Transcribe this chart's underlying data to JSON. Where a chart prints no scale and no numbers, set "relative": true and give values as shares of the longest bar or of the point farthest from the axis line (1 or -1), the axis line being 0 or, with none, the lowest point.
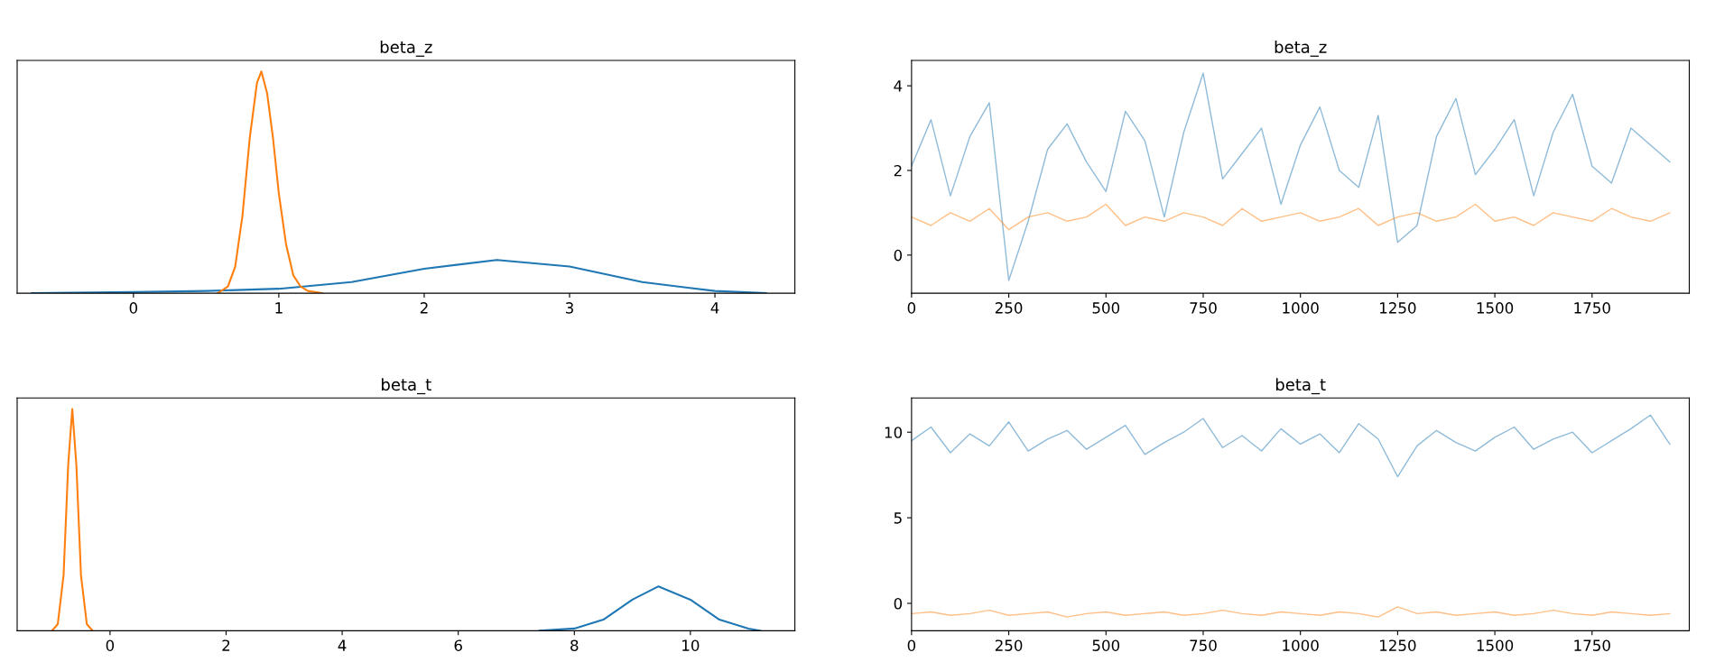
{
  "chart_data": [
    {
      "type": "line",
      "title": "beta_z",
      "relative": true,
      "xlim": [
        -0.8,
        4.55
      ],
      "xticks": [
        0,
        1,
        2,
        3,
        4
      ],
      "tick_labels": "x",
      "grid": false,
      "series": [
        {
          "color": "#1f77b4",
          "x": [
            -0.7,
            0,
            0.5,
            1,
            1.5,
            2,
            2.5,
            3,
            3.5,
            4,
            4.35
          ],
          "values": [
            0,
            0.005,
            0.01,
            0.02,
            0.05,
            0.11,
            0.15,
            0.12,
            0.05,
            0.01,
            0
          ]
        },
        {
          "color": "#ff7f0e",
          "x": [
            0.58,
            0.65,
            0.7,
            0.75,
            0.8,
            0.85,
            0.88,
            0.92,
            0.96,
            1.0,
            1.05,
            1.1,
            1.15,
            1.2,
            1.3
          ],
          "values": [
            0,
            0.03,
            0.12,
            0.35,
            0.7,
            0.95,
            1.0,
            0.9,
            0.7,
            0.45,
            0.22,
            0.08,
            0.03,
            0.01,
            0
          ]
        }
      ]
    },
    {
      "type": "line",
      "title": "beta_z",
      "xlim": [
        0,
        2000
      ],
      "xticks": [
        0,
        250,
        500,
        750,
        1000,
        1250,
        1500,
        1750
      ],
      "ylim": [
        -0.9,
        4.6
      ],
      "yticks": [
        0,
        2,
        4
      ],
      "grid": false,
      "x": [
        0,
        50,
        100,
        150,
        200,
        250,
        300,
        350,
        400,
        450,
        500,
        550,
        600,
        650,
        700,
        750,
        800,
        850,
        900,
        950,
        1000,
        1050,
        1100,
        1150,
        1200,
        1250,
        1300,
        1350,
        1400,
        1450,
        1500,
        1550,
        1600,
        1650,
        1700,
        1750,
        1800,
        1850,
        1900,
        1950
      ],
      "series": [
        {
          "color": "#1f77b4",
          "values": [
            2.1,
            3.2,
            1.4,
            2.8,
            3.6,
            -0.6,
            0.8,
            2.5,
            3.1,
            2.2,
            1.5,
            3.4,
            2.7,
            0.9,
            2.9,
            4.3,
            1.8,
            2.4,
            3.0,
            1.2,
            2.6,
            3.5,
            2.0,
            1.6,
            3.3,
            0.3,
            0.7,
            2.8,
            3.7,
            1.9,
            2.5,
            3.2,
            1.4,
            2.9,
            3.8,
            2.1,
            1.7,
            3.0,
            2.6,
            2.2
          ]
        },
        {
          "color": "#ff7f0e",
          "values": [
            0.9,
            0.7,
            1.0,
            0.8,
            1.1,
            0.6,
            0.9,
            1.0,
            0.8,
            0.9,
            1.2,
            0.7,
            0.9,
            0.8,
            1.0,
            0.9,
            0.7,
            1.1,
            0.8,
            0.9,
            1.0,
            0.8,
            0.9,
            1.1,
            0.7,
            0.9,
            1.0,
            0.8,
            0.9,
            1.2,
            0.8,
            0.9,
            0.7,
            1.0,
            0.9,
            0.8,
            1.1,
            0.9,
            0.8,
            1.0
          ]
        }
      ]
    },
    {
      "type": "line",
      "title": "beta_t",
      "relative": true,
      "xlim": [
        -1.6,
        11.8
      ],
      "xticks": [
        0,
        2,
        4,
        6,
        8,
        10
      ],
      "tick_labels": "x",
      "grid": false,
      "series": [
        {
          "color": "#1f77b4",
          "x": [
            7.4,
            8,
            8.5,
            9,
            9.45,
            10,
            10.5,
            11,
            11.2
          ],
          "values": [
            0,
            0.01,
            0.05,
            0.14,
            0.2,
            0.14,
            0.05,
            0.01,
            0
          ]
        },
        {
          "color": "#ff7f0e",
          "x": [
            -1.0,
            -0.9,
            -0.8,
            -0.72,
            -0.65,
            -0.58,
            -0.5,
            -0.4,
            -0.3
          ],
          "values": [
            0,
            0.03,
            0.25,
            0.75,
            1.0,
            0.75,
            0.25,
            0.03,
            0
          ]
        }
      ]
    },
    {
      "type": "line",
      "title": "beta_t",
      "xlim": [
        0,
        2000
      ],
      "xticks": [
        0,
        250,
        500,
        750,
        1000,
        1250,
        1500,
        1750
      ],
      "ylim": [
        -1.6,
        12
      ],
      "yticks": [
        0,
        5,
        10
      ],
      "grid": false,
      "x": [
        0,
        50,
        100,
        150,
        200,
        250,
        300,
        350,
        400,
        450,
        500,
        550,
        600,
        650,
        700,
        750,
        800,
        850,
        900,
        950,
        1000,
        1050,
        1100,
        1150,
        1200,
        1250,
        1300,
        1350,
        1400,
        1450,
        1500,
        1550,
        1600,
        1650,
        1700,
        1750,
        1800,
        1850,
        1900,
        1950
      ],
      "series": [
        {
          "color": "#1f77b4",
          "values": [
            9.5,
            10.3,
            8.8,
            9.9,
            9.2,
            10.6,
            8.9,
            9.6,
            10.1,
            9.0,
            9.7,
            10.4,
            8.7,
            9.4,
            10.0,
            10.8,
            9.1,
            9.8,
            8.9,
            10.2,
            9.3,
            9.9,
            8.8,
            10.5,
            9.6,
            7.4,
            9.2,
            10.1,
            9.4,
            8.9,
            9.7,
            10.3,
            9.0,
            9.6,
            10.0,
            8.8,
            9.5,
            10.2,
            11.0,
            9.3
          ]
        },
        {
          "color": "#ff7f0e",
          "values": [
            -0.6,
            -0.5,
            -0.7,
            -0.6,
            -0.4,
            -0.7,
            -0.6,
            -0.5,
            -0.8,
            -0.6,
            -0.5,
            -0.7,
            -0.6,
            -0.5,
            -0.7,
            -0.6,
            -0.4,
            -0.6,
            -0.7,
            -0.5,
            -0.6,
            -0.7,
            -0.5,
            -0.6,
            -0.8,
            -0.2,
            -0.6,
            -0.5,
            -0.7,
            -0.6,
            -0.5,
            -0.7,
            -0.6,
            -0.4,
            -0.6,
            -0.7,
            -0.5,
            -0.6,
            -0.7,
            -0.6
          ]
        }
      ]
    }
  ]
}
